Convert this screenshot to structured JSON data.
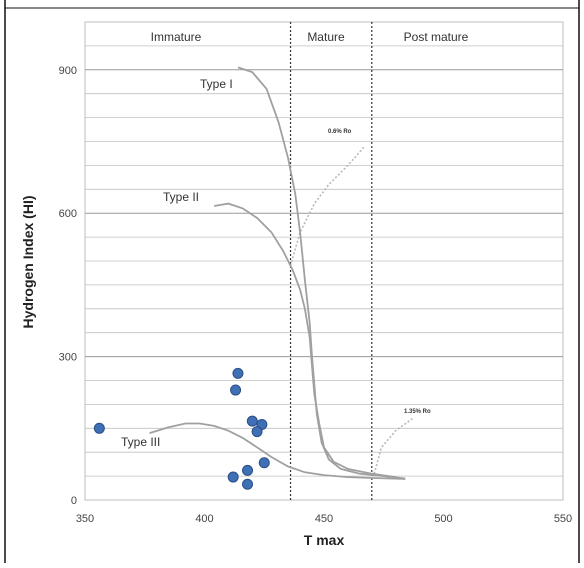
{
  "chart_data": {
    "type": "scatter",
    "xlabel": "T max",
    "ylabel": "Hydrogen Index (HI)",
    "xlim": [
      350,
      550
    ],
    "ylim": [
      0,
      1000
    ],
    "x_ticks": [
      350,
      400,
      450,
      500,
      550
    ],
    "y_ticks": [
      0,
      300,
      600,
      900
    ],
    "grid": "horizontal",
    "zones": [
      {
        "label": "Immature",
        "x_from": 350,
        "x_to": 436
      },
      {
        "label": "Mature",
        "x_from": 436,
        "x_to": 470
      },
      {
        "label": "Post mature",
        "x_from": 470,
        "x_to": 550
      }
    ],
    "boundaries": [
      436,
      470
    ],
    "curves": [
      {
        "label": "Type I",
        "points": [
          [
            414,
            905
          ],
          [
            420,
            895
          ],
          [
            426,
            860
          ],
          [
            431,
            790
          ],
          [
            435,
            715
          ],
          [
            438,
            640
          ],
          [
            440,
            560
          ],
          [
            442,
            460
          ],
          [
            444,
            370
          ],
          [
            445,
            300
          ],
          [
            446,
            240
          ],
          [
            447,
            180
          ],
          [
            449,
            120
          ],
          [
            452,
            85
          ],
          [
            457,
            65
          ],
          [
            465,
            55
          ],
          [
            475,
            50
          ],
          [
            484,
            45
          ]
        ]
      },
      {
        "label": "Type II",
        "points": [
          [
            404,
            615
          ],
          [
            410,
            620
          ],
          [
            416,
            610
          ],
          [
            422,
            590
          ],
          [
            428,
            560
          ],
          [
            433,
            520
          ],
          [
            437,
            480
          ],
          [
            440,
            440
          ],
          [
            442,
            400
          ],
          [
            444,
            340
          ],
          [
            445,
            280
          ],
          [
            446,
            220
          ],
          [
            448,
            160
          ],
          [
            450,
            110
          ],
          [
            454,
            80
          ],
          [
            460,
            65
          ],
          [
            470,
            55
          ],
          [
            480,
            48
          ]
        ]
      },
      {
        "label": "Type III",
        "points": [
          [
            377,
            140
          ],
          [
            385,
            152
          ],
          [
            392,
            160
          ],
          [
            398,
            160
          ],
          [
            404,
            155
          ],
          [
            410,
            145
          ],
          [
            416,
            130
          ],
          [
            422,
            110
          ],
          [
            428,
            90
          ],
          [
            435,
            70
          ],
          [
            442,
            58
          ],
          [
            450,
            52
          ],
          [
            460,
            48
          ],
          [
            470,
            46
          ],
          [
            478,
            45
          ],
          [
            484,
            44
          ]
        ]
      }
    ],
    "ro_lines": [
      {
        "label": "0.6% Ro",
        "points": [
          [
            436,
            490
          ],
          [
            440,
            560
          ],
          [
            446,
            620
          ],
          [
            452,
            660
          ],
          [
            460,
            700
          ],
          [
            467,
            740
          ]
        ]
      },
      {
        "label": "1.35% Ro",
        "points": [
          [
            471,
            55
          ],
          [
            474,
            110
          ],
          [
            480,
            145
          ],
          [
            487,
            170
          ]
        ]
      }
    ],
    "points": [
      {
        "x": 356,
        "y": 150
      },
      {
        "x": 414,
        "y": 265
      },
      {
        "x": 413,
        "y": 230
      },
      {
        "x": 420,
        "y": 165
      },
      {
        "x": 424,
        "y": 158
      },
      {
        "x": 422,
        "y": 143
      },
      {
        "x": 425,
        "y": 78
      },
      {
        "x": 418,
        "y": 62
      },
      {
        "x": 412,
        "y": 48
      },
      {
        "x": 418,
        "y": 33
      }
    ],
    "colors": {
      "points": "#3f6fb5",
      "points_edge": "#2a4f86",
      "curves": "#a0a0a0",
      "ro": "#b8b8b8",
      "grid": "#c0c0c0",
      "boundary": "#333333"
    }
  }
}
